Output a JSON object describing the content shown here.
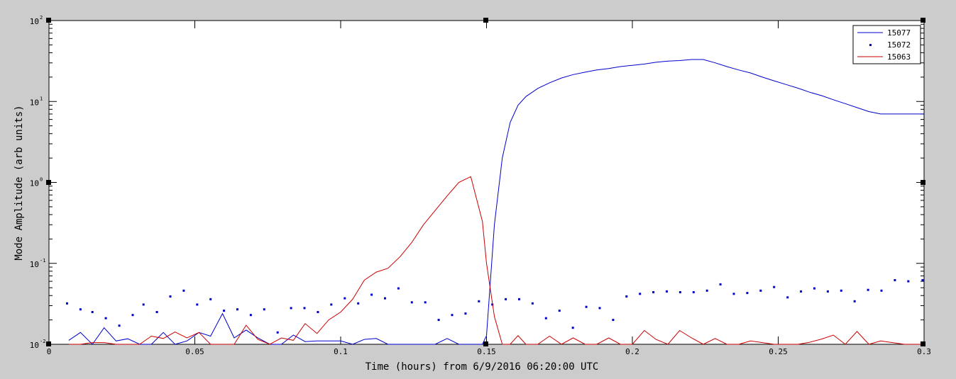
{
  "chart_data": {
    "type": "line",
    "title": "",
    "xlabel": "Time (hours) from 6/9/2016 06:20:00 UTC",
    "ylabel": "Mode Amplitude (arb units)",
    "xlim": [
      0,
      0.3
    ],
    "ylim": [
      0.01,
      100
    ],
    "yscale": "log",
    "grid": false,
    "legend": "top-right",
    "x_ticks": [
      0,
      0.05,
      0.1,
      0.15,
      0.2,
      0.25,
      0.3
    ],
    "x_tick_labels": [
      "0",
      "0.05",
      "0.1",
      "0.15",
      "0.2",
      "0.25",
      "0.3"
    ],
    "y_ticks": [
      0.01,
      0.1,
      1,
      10,
      100
    ],
    "y_tick_labels": [
      {
        "base": "10",
        "exp": "-2"
      },
      {
        "base": "10",
        "exp": "-1"
      },
      {
        "base": "10",
        "exp": "0"
      },
      {
        "base": "10",
        "exp": "1"
      },
      {
        "base": "10",
        "exp": "2"
      }
    ],
    "series": [
      {
        "name": "15077",
        "style": "line",
        "color": "#0000cc",
        "x": [
          0.0068,
          0.0108,
          0.0149,
          0.0189,
          0.023,
          0.027,
          0.0311,
          0.0351,
          0.0392,
          0.0432,
          0.0473,
          0.0514,
          0.0554,
          0.0595,
          0.0635,
          0.0676,
          0.0716,
          0.0757,
          0.0797,
          0.0838,
          0.0878,
          0.0919,
          0.0959,
          0.1,
          0.1041,
          0.1081,
          0.1122,
          0.1162,
          0.1203,
          0.1243,
          0.1284,
          0.1324,
          0.1365,
          0.1405,
          0.1446,
          0.1486,
          0.15,
          0.1527,
          0.1554,
          0.1581,
          0.1608,
          0.1635,
          0.1676,
          0.1716,
          0.1757,
          0.1797,
          0.1838,
          0.1878,
          0.1919,
          0.1959,
          0.2,
          0.2041,
          0.2081,
          0.2122,
          0.2162,
          0.2203,
          0.2243,
          0.2284,
          0.2324,
          0.2365,
          0.2405,
          0.2446,
          0.2486,
          0.2527,
          0.2568,
          0.2608,
          0.2649,
          0.2689,
          0.273,
          0.277,
          0.2811,
          0.2851,
          0.2892,
          0.2932,
          0.2973,
          0.3
        ],
        "y": [
          0.0112,
          0.014,
          0.01,
          0.016,
          0.011,
          0.0117,
          0.01,
          0.01,
          0.014,
          0.01,
          0.011,
          0.014,
          0.0126,
          0.024,
          0.012,
          0.015,
          0.012,
          0.01,
          0.01,
          0.013,
          0.0108,
          0.011,
          0.011,
          0.011,
          0.01,
          0.0115,
          0.0118,
          0.01,
          0.01,
          0.01,
          0.01,
          0.01,
          0.0118,
          0.01,
          0.01,
          0.01,
          0.0128,
          0.3,
          2.0,
          5.5,
          9.0,
          11.5,
          14.5,
          17.0,
          19.5,
          21.5,
          23.0,
          24.5,
          25.5,
          27.0,
          28.0,
          29.0,
          30.5,
          31.5,
          32.0,
          33.0,
          33.0,
          30.0,
          27.0,
          24.5,
          22.5,
          20.0,
          18.0,
          16.2,
          14.6,
          13.0,
          11.8,
          10.5,
          9.4,
          8.4,
          7.5,
          7.0,
          7.0,
          7.0,
          7.0,
          7.0
        ]
      },
      {
        "name": "15072",
        "style": "markers",
        "color": "#0000cc",
        "x": [
          0.0062,
          0.0108,
          0.0149,
          0.0195,
          0.0241,
          0.0287,
          0.0324,
          0.037,
          0.0416,
          0.0462,
          0.0508,
          0.0554,
          0.06,
          0.0646,
          0.0692,
          0.0738,
          0.0784,
          0.083,
          0.0876,
          0.0922,
          0.0968,
          0.1014,
          0.106,
          0.1106,
          0.1152,
          0.1198,
          0.1244,
          0.129,
          0.1336,
          0.1382,
          0.1428,
          0.1474,
          0.152,
          0.1566,
          0.1612,
          0.1658,
          0.1704,
          0.175,
          0.1796,
          0.1842,
          0.1888,
          0.1934,
          0.198,
          0.2026,
          0.2072,
          0.2118,
          0.2164,
          0.221,
          0.2256,
          0.2302,
          0.2348,
          0.2394,
          0.244,
          0.2486,
          0.2532,
          0.2578,
          0.2624,
          0.267,
          0.2716,
          0.2762,
          0.2808,
          0.2854,
          0.29,
          0.2946,
          0.2995
        ],
        "y": [
          0.032,
          0.027,
          0.025,
          0.021,
          0.017,
          0.023,
          0.031,
          0.025,
          0.039,
          0.046,
          0.031,
          0.036,
          0.026,
          0.027,
          0.023,
          0.027,
          0.014,
          0.028,
          0.028,
          0.025,
          0.031,
          0.037,
          0.032,
          0.041,
          0.037,
          0.049,
          0.033,
          0.033,
          0.02,
          0.023,
          0.024,
          0.034,
          0.031,
          0.036,
          0.036,
          0.032,
          0.021,
          0.026,
          0.016,
          0.029,
          0.028,
          0.02,
          0.039,
          0.042,
          0.044,
          0.045,
          0.044,
          0.044,
          0.046,
          0.055,
          0.042,
          0.043,
          0.046,
          0.051,
          0.038,
          0.045,
          0.049,
          0.045,
          0.046,
          0.034,
          0.047,
          0.046,
          0.062,
          0.06,
          0.062
        ]
      },
      {
        "name": "15063",
        "style": "line",
        "color": "#cc0000",
        "x": [
          0.0068,
          0.0108,
          0.0149,
          0.0189,
          0.023,
          0.027,
          0.0311,
          0.0351,
          0.0392,
          0.0432,
          0.0473,
          0.0514,
          0.0554,
          0.0595,
          0.0635,
          0.0676,
          0.0716,
          0.0757,
          0.0797,
          0.0838,
          0.0878,
          0.0919,
          0.0959,
          0.1,
          0.1041,
          0.1081,
          0.1122,
          0.1162,
          0.1203,
          0.1243,
          0.1284,
          0.1324,
          0.1365,
          0.1405,
          0.1446,
          0.1486,
          0.15,
          0.1527,
          0.1554,
          0.1581,
          0.1608,
          0.1635,
          0.1676,
          0.1716,
          0.1757,
          0.1797,
          0.1838,
          0.1878,
          0.1919,
          0.1959,
          0.2,
          0.2041,
          0.2081,
          0.2122,
          0.2162,
          0.2203,
          0.2243,
          0.2284,
          0.2324,
          0.2365,
          0.2405,
          0.2446,
          0.2486,
          0.2527,
          0.2568,
          0.2608,
          0.2649,
          0.2689,
          0.273,
          0.277,
          0.2811,
          0.2851,
          0.2892,
          0.2932,
          0.2973,
          0.3
        ],
        "y": [
          0.01,
          0.01,
          0.0105,
          0.0105,
          0.01,
          0.01,
          0.01,
          0.0126,
          0.0118,
          0.0142,
          0.012,
          0.014,
          0.01,
          0.01,
          0.01,
          0.0172,
          0.0115,
          0.01,
          0.012,
          0.0112,
          0.018,
          0.0136,
          0.02,
          0.025,
          0.036,
          0.062,
          0.078,
          0.087,
          0.12,
          0.18,
          0.3,
          0.45,
          0.68,
          1.0,
          1.18,
          0.33,
          0.1,
          0.022,
          0.01,
          0.01,
          0.0128,
          0.01,
          0.01,
          0.0126,
          0.01,
          0.012,
          0.01,
          0.01,
          0.012,
          0.01,
          0.01,
          0.0148,
          0.0115,
          0.01,
          0.0148,
          0.012,
          0.01,
          0.0118,
          0.01,
          0.01,
          0.011,
          0.0105,
          0.01,
          0.01,
          0.01,
          0.0106,
          0.0116,
          0.013,
          0.01,
          0.0144,
          0.01,
          0.011,
          0.0105,
          0.01,
          0.01,
          0.01
        ]
      }
    ]
  }
}
